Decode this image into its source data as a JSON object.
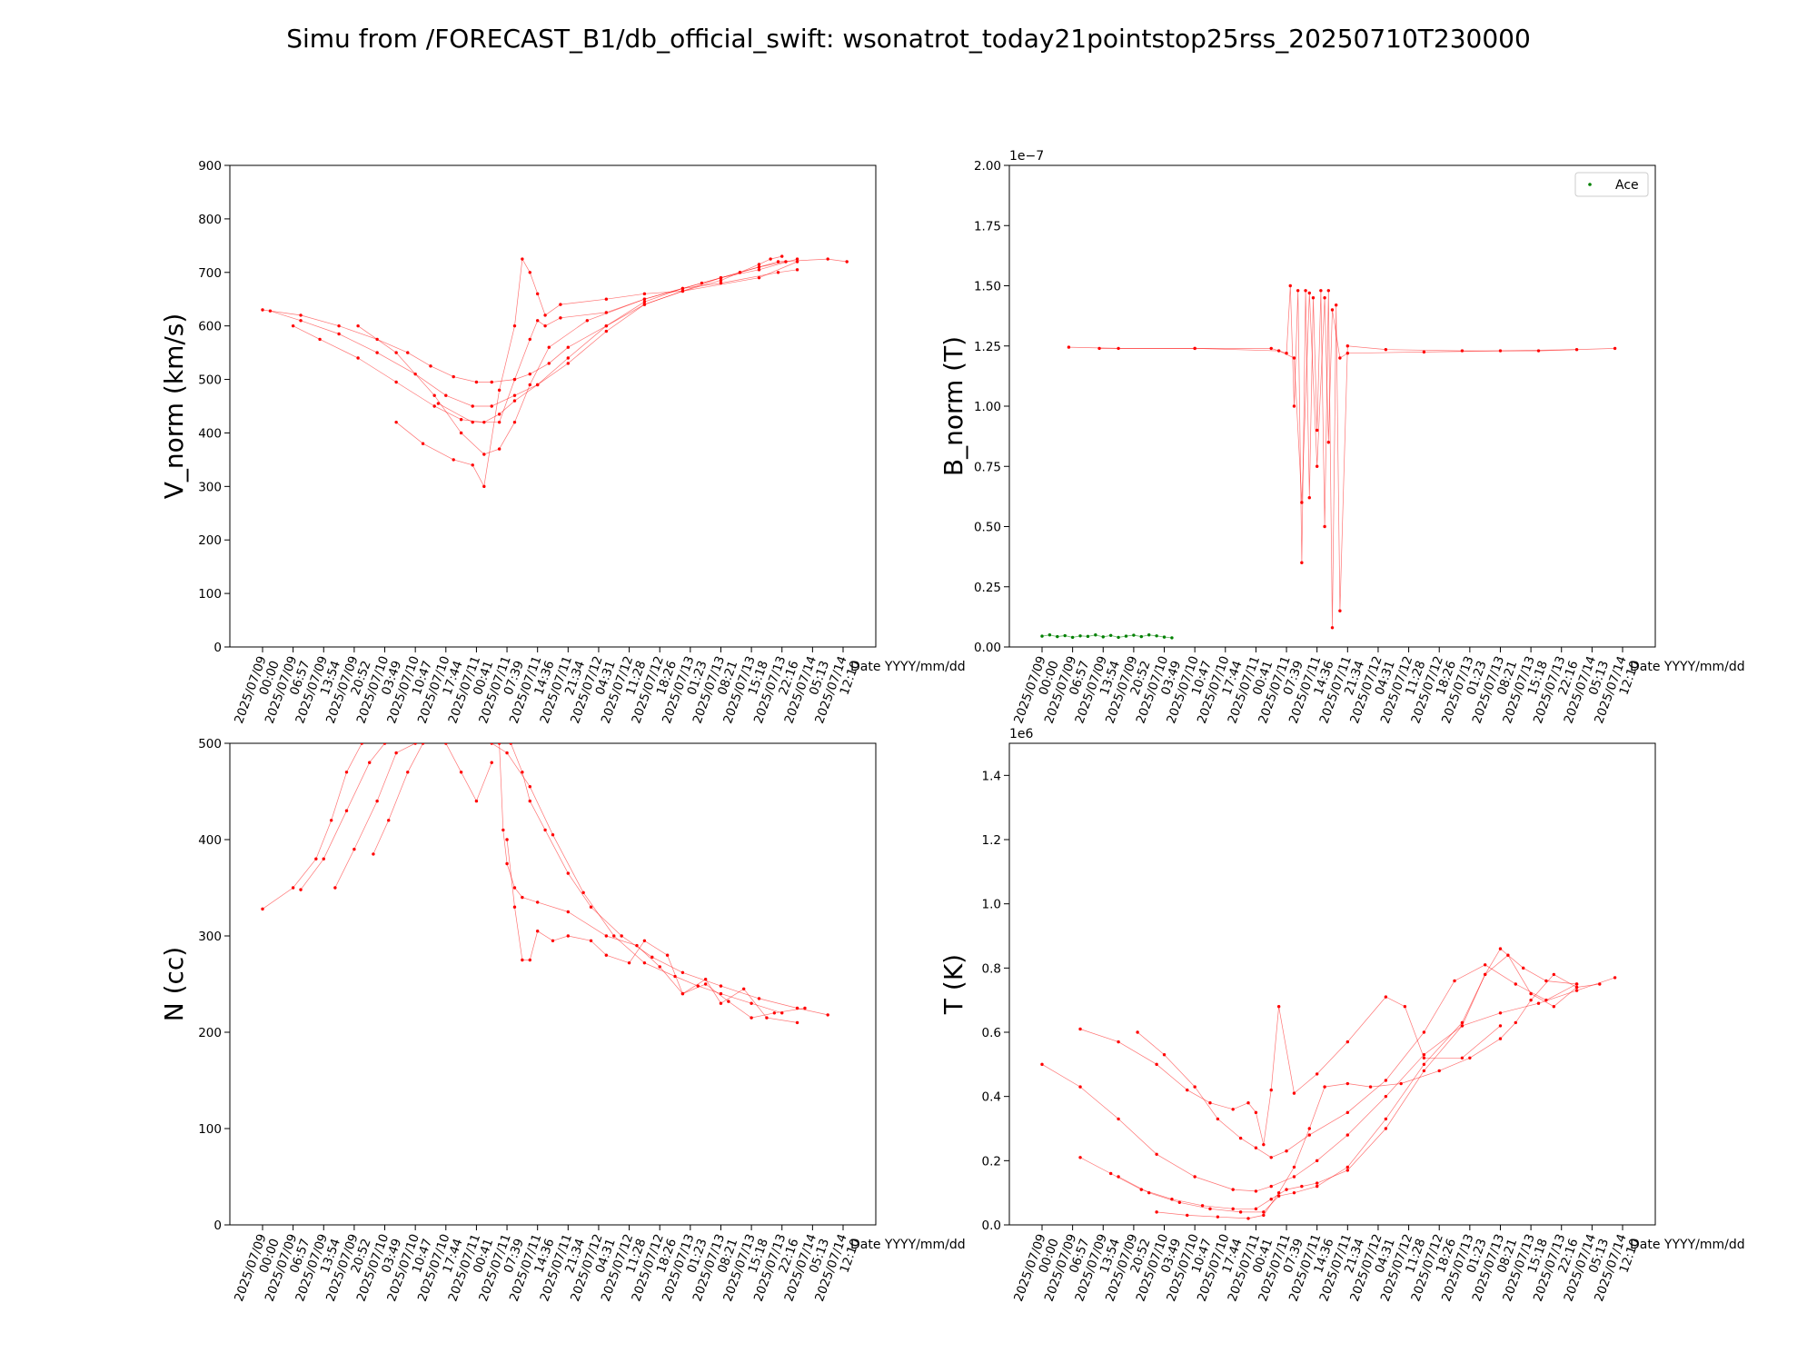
{
  "suptitle": "Simu from /FORECAST_B1/db_official_swift: wsonatrot_today21pointstop25rss_20250710T230000",
  "x_axis_name": "Date YYYY/mm/dd",
  "x_ticks": [
    [
      "2025/07/09",
      "00:00"
    ],
    [
      "2025/07/09",
      "06:57"
    ],
    [
      "2025/07/09",
      "13:54"
    ],
    [
      "2025/07/09",
      "20:52"
    ],
    [
      "2025/07/10",
      "03:49"
    ],
    [
      "2025/07/10",
      "10:47"
    ],
    [
      "2025/07/10",
      "17:44"
    ],
    [
      "2025/07/11",
      "00:41"
    ],
    [
      "2025/07/11",
      "07:39"
    ],
    [
      "2025/07/11",
      "14:36"
    ],
    [
      "2025/07/11",
      "21:34"
    ],
    [
      "2025/07/12",
      "04:31"
    ],
    [
      "2025/07/12",
      "11:28"
    ],
    [
      "2025/07/12",
      "18:26"
    ],
    [
      "2025/07/13",
      "01:23"
    ],
    [
      "2025/07/13",
      "08:21"
    ],
    [
      "2025/07/13",
      "15:18"
    ],
    [
      "2025/07/13",
      "22:16"
    ],
    [
      "2025/07/14",
      "05:13"
    ],
    [
      "2025/07/14",
      "12:10"
    ]
  ],
  "colors": {
    "simulation": "#ff0000",
    "ace": "#008000",
    "axes": "#000000"
  },
  "chart_data": [
    {
      "type": "line",
      "ylabel": "V_norm (km/s)",
      "ylim": [
        0,
        900
      ],
      "yticks": [
        "0",
        "100",
        "200",
        "300",
        "400",
        "500",
        "600",
        "700",
        "800",
        "900"
      ],
      "offset_text": "",
      "series": [
        {
          "color": "#ff0000",
          "x": [
            0,
            10,
            20,
            30,
            38,
            44,
            50,
            56,
            60,
            66,
            70,
            75,
            80,
            90,
            100,
            110,
            120,
            125,
            130,
            133,
            136
          ],
          "y": [
            630,
            620,
            600,
            575,
            550,
            525,
            505,
            495,
            495,
            500,
            510,
            530,
            560,
            600,
            640,
            665,
            685,
            700,
            715,
            725,
            730
          ]
        },
        {
          "color": "#ff0000",
          "x": [
            2,
            10,
            20,
            30,
            40,
            48,
            55,
            60,
            66,
            72,
            80,
            90,
            100,
            110,
            120,
            130,
            137
          ],
          "y": [
            628,
            610,
            585,
            550,
            510,
            470,
            450,
            450,
            470,
            490,
            530,
            590,
            640,
            665,
            690,
            710,
            720
          ]
        },
        {
          "color": "#ff0000",
          "x": [
            8,
            15,
            25,
            35,
            45,
            52,
            58,
            62,
            66,
            72,
            80,
            90,
            100,
            110,
            120,
            130,
            140
          ],
          "y": [
            600,
            575,
            540,
            495,
            450,
            425,
            420,
            435,
            460,
            490,
            540,
            600,
            645,
            670,
            690,
            705,
            725
          ]
        },
        {
          "color": "#ff0000",
          "x": [
            25,
            35,
            45,
            52,
            58,
            62,
            66,
            70,
            75,
            85,
            100,
            115,
            125,
            135,
            148,
            153
          ],
          "y": [
            600,
            550,
            470,
            400,
            360,
            370,
            420,
            490,
            560,
            610,
            650,
            680,
            700,
            720,
            725,
            720
          ]
        },
        {
          "color": "#ff0000",
          "x": [
            35,
            42,
            50,
            55,
            58,
            62,
            66,
            68,
            70,
            72,
            74,
            78,
            90,
            100,
            110,
            130,
            140
          ],
          "y": [
            420,
            380,
            350,
            340,
            300,
            480,
            600,
            725,
            700,
            660,
            620,
            640,
            650,
            660,
            665,
            690,
            720
          ]
        },
        {
          "color": "#ff0000",
          "x": [
            46,
            55,
            62,
            66,
            70,
            72,
            74,
            78,
            90,
            100,
            110,
            120,
            135,
            140
          ],
          "y": [
            455,
            420,
            420,
            500,
            575,
            610,
            600,
            615,
            625,
            650,
            670,
            680,
            700,
            705
          ]
        }
      ]
    },
    {
      "type": "line",
      "ylabel": "B_norm (T)",
      "ylim": [
        0,
        2.0
      ],
      "yticks": [
        "0.00",
        "0.25",
        "0.50",
        "0.75",
        "1.00",
        "1.25",
        "1.50",
        "1.75",
        "2.00"
      ],
      "offset_text": "1e−7",
      "legend": {
        "entries": [
          "Ace"
        ],
        "loc": "top-right"
      },
      "series": [
        {
          "color": "#ff0000",
          "x": [
            7,
            20,
            40,
            60,
            64,
            65,
            66,
            67,
            68,
            69,
            70,
            71,
            72,
            73,
            74,
            75,
            76,
            77,
            78,
            80,
            90,
            110,
            130,
            150
          ],
          "y": [
            1.245,
            1.24,
            1.24,
            1.24,
            1.22,
            1.5,
            1.0,
            1.48,
            0.35,
            1.48,
            0.62,
            1.45,
            0.9,
            1.48,
            0.5,
            1.48,
            0.08,
            1.42,
            0.15,
            1.25,
            1.235,
            1.23,
            1.23,
            1.24
          ]
        },
        {
          "color": "#ff0000",
          "x": [
            15,
            40,
            62,
            66,
            68,
            70,
            72,
            74,
            75,
            76,
            78,
            80,
            100,
            120,
            140
          ],
          "y": [
            1.24,
            1.24,
            1.23,
            1.2,
            0.6,
            1.47,
            0.75,
            1.45,
            0.85,
            1.4,
            1.2,
            1.22,
            1.225,
            1.23,
            1.235
          ]
        }
      ],
      "ace_series": {
        "name": "Ace",
        "color": "#008000",
        "x": [
          0,
          2,
          4,
          6,
          8,
          10,
          12,
          14,
          16,
          18,
          20,
          22,
          24,
          26,
          28,
          30,
          32,
          34
        ],
        "y": [
          0.045,
          0.05,
          0.043,
          0.047,
          0.04,
          0.046,
          0.044,
          0.05,
          0.042,
          0.048,
          0.04,
          0.045,
          0.049,
          0.043,
          0.05,
          0.046,
          0.041,
          0.038
        ]
      }
    },
    {
      "type": "line",
      "ylabel": "N (cc)",
      "ylim": [
        0,
        500
      ],
      "yticks": [
        "0",
        "100",
        "200",
        "300",
        "400",
        "500"
      ],
      "offset_text": "",
      "series": [
        {
          "color": "#ff0000",
          "x": [
            0,
            8,
            14,
            18,
            22,
            26
          ],
          "y": [
            328,
            350,
            380,
            420,
            470,
            500
          ]
        },
        {
          "color": "#ff0000",
          "x": [
            10,
            16,
            22,
            28,
            32
          ],
          "y": [
            348,
            380,
            430,
            480,
            500
          ]
        },
        {
          "color": "#ff0000",
          "x": [
            19,
            24,
            30,
            35,
            40
          ],
          "y": [
            350,
            390,
            440,
            490,
            500
          ]
        },
        {
          "color": "#ff0000",
          "x": [
            29,
            33,
            38,
            42
          ],
          "y": [
            385,
            420,
            470,
            500
          ]
        },
        {
          "color": "#ff0000",
          "x": [
            48,
            52,
            56,
            60
          ],
          "y": [
            500,
            470,
            440,
            480
          ]
        },
        {
          "color": "#ff0000",
          "x": [
            60,
            64,
            70,
            76,
            84,
            92,
            100,
            108,
            114,
            120,
            128,
            136
          ],
          "y": [
            500,
            490,
            455,
            405,
            345,
            300,
            272,
            258,
            248,
            240,
            230,
            220
          ]
        },
        {
          "color": "#ff0000",
          "x": [
            65,
            68,
            70,
            74,
            80,
            86,
            94,
            102,
            110,
            120,
            130,
            140,
            148
          ],
          "y": [
            500,
            470,
            440,
            410,
            365,
            330,
            300,
            278,
            262,
            248,
            235,
            225,
            218
          ]
        },
        {
          "color": "#ff0000",
          "x": [
            62,
            63,
            64,
            66,
            68,
            72,
            80,
            90,
            98,
            104,
            110,
            116,
            122,
            128,
            134,
            142
          ],
          "y": [
            500,
            410,
            375,
            350,
            340,
            335,
            325,
            300,
            290,
            268,
            240,
            250,
            232,
            215,
            220,
            225
          ]
        },
        {
          "color": "#ff0000",
          "x": [
            64,
            66,
            68,
            70,
            72,
            76,
            80,
            86,
            90,
            96,
            100,
            106,
            110,
            116,
            120,
            126,
            132,
            140
          ],
          "y": [
            400,
            330,
            275,
            275,
            305,
            295,
            300,
            295,
            280,
            272,
            295,
            280,
            240,
            255,
            230,
            245,
            215,
            210
          ]
        }
      ]
    },
    {
      "type": "line",
      "ylabel": "T (K)",
      "ylim": [
        0,
        1.5
      ],
      "yticks": [
        "0.0",
        "0.2",
        "0.4",
        "0.6",
        "0.8",
        "1.0",
        "1.2",
        "1.4"
      ],
      "offset_text": "1e6",
      "series": [
        {
          "color": "#ff0000",
          "x": [
            0,
            10,
            20,
            30,
            40,
            50,
            56,
            60,
            66,
            72,
            80,
            90,
            100,
            110,
            120,
            130,
            140,
            150
          ],
          "y": [
            0.5,
            0.43,
            0.33,
            0.22,
            0.15,
            0.11,
            0.105,
            0.12,
            0.15,
            0.2,
            0.28,
            0.4,
            0.53,
            0.62,
            0.66,
            0.69,
            0.73,
            0.77
          ]
        },
        {
          "color": "#ff0000",
          "x": [
            10,
            18,
            26,
            34,
            42,
            50,
            56,
            60,
            64,
            68,
            72,
            80,
            90,
            100,
            110,
            116,
            122,
            128,
            134,
            140
          ],
          "y": [
            0.21,
            0.16,
            0.11,
            0.08,
            0.06,
            0.05,
            0.05,
            0.08,
            0.11,
            0.12,
            0.13,
            0.17,
            0.3,
            0.48,
            0.62,
            0.78,
            0.84,
            0.72,
            0.68,
            0.74
          ]
        },
        {
          "color": "#ff0000",
          "x": [
            10,
            20,
            30,
            38,
            44,
            50,
            54,
            56,
            58,
            60,
            62,
            66,
            72,
            80,
            90,
            95,
            100,
            110,
            120
          ],
          "y": [
            0.61,
            0.57,
            0.5,
            0.42,
            0.38,
            0.36,
            0.38,
            0.35,
            0.25,
            0.42,
            0.68,
            0.41,
            0.47,
            0.57,
            0.71,
            0.68,
            0.52,
            0.52,
            0.62
          ]
        },
        {
          "color": "#ff0000",
          "x": [
            25,
            32,
            40,
            46,
            52,
            56,
            60,
            64,
            70,
            80,
            90,
            100,
            108,
            116,
            124,
            132,
            140
          ],
          "y": [
            0.6,
            0.53,
            0.43,
            0.33,
            0.27,
            0.24,
            0.21,
            0.23,
            0.28,
            0.35,
            0.45,
            0.6,
            0.76,
            0.81,
            0.75,
            0.7,
            0.75
          ]
        },
        {
          "color": "#ff0000",
          "x": [
            20,
            28,
            36,
            44,
            52,
            58,
            62,
            66,
            72,
            80,
            90,
            100,
            110,
            116,
            120,
            126,
            132,
            140
          ],
          "y": [
            0.15,
            0.1,
            0.07,
            0.05,
            0.04,
            0.04,
            0.09,
            0.1,
            0.12,
            0.18,
            0.33,
            0.5,
            0.63,
            0.78,
            0.86,
            0.8,
            0.76,
            0.75
          ]
        },
        {
          "color": "#ff0000",
          "x": [
            30,
            38,
            46,
            54,
            58,
            62,
            66,
            70,
            74,
            80,
            86,
            94,
            104,
            112,
            120,
            124,
            128,
            134,
            140,
            146
          ],
          "y": [
            0.04,
            0.03,
            0.025,
            0.02,
            0.03,
            0.1,
            0.18,
            0.3,
            0.43,
            0.44,
            0.43,
            0.44,
            0.48,
            0.52,
            0.58,
            0.63,
            0.7,
            0.78,
            0.74,
            0.75
          ]
        }
      ]
    }
  ]
}
